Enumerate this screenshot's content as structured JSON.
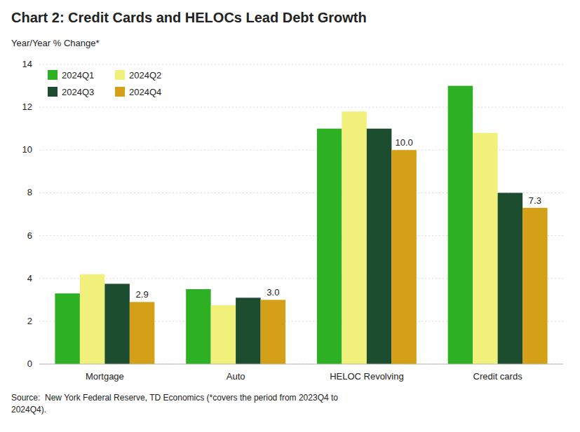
{
  "chart_data": {
    "type": "bar",
    "title": "Chart 2: Credit Cards and HELOCs Lead Debt Growth",
    "y_label": "Year/Year % Change*",
    "source": "Source:  New York Federal Reserve, TD Economics (*covers the period from 2023Q4 to\n2024Q4).",
    "categories": [
      "Mortgage",
      "Auto",
      "HELOC Revolving",
      "Credit cards"
    ],
    "series": [
      {
        "name": "2024Q1",
        "color": "#2db024",
        "values": [
          3.3,
          3.5,
          11.0,
          13.0
        ]
      },
      {
        "name": "2024Q2",
        "color": "#f0f07a",
        "values": [
          4.2,
          2.75,
          11.8,
          10.8
        ]
      },
      {
        "name": "2024Q3",
        "color": "#1b4d2e",
        "values": [
          3.75,
          3.1,
          11.0,
          8.0
        ]
      },
      {
        "name": "2024Q4",
        "color": "#d4a017",
        "values": [
          2.9,
          3.0,
          10.0,
          7.3
        ],
        "data_labels": true,
        "value_labels": [
          "2.9",
          "3.0",
          "10.0",
          "7.3"
        ]
      }
    ],
    "ylim": [
      0,
      14
    ],
    "yticks": [
      0,
      2,
      4,
      6,
      8,
      10,
      12,
      14
    ],
    "grid": true,
    "legend": "upper left"
  }
}
